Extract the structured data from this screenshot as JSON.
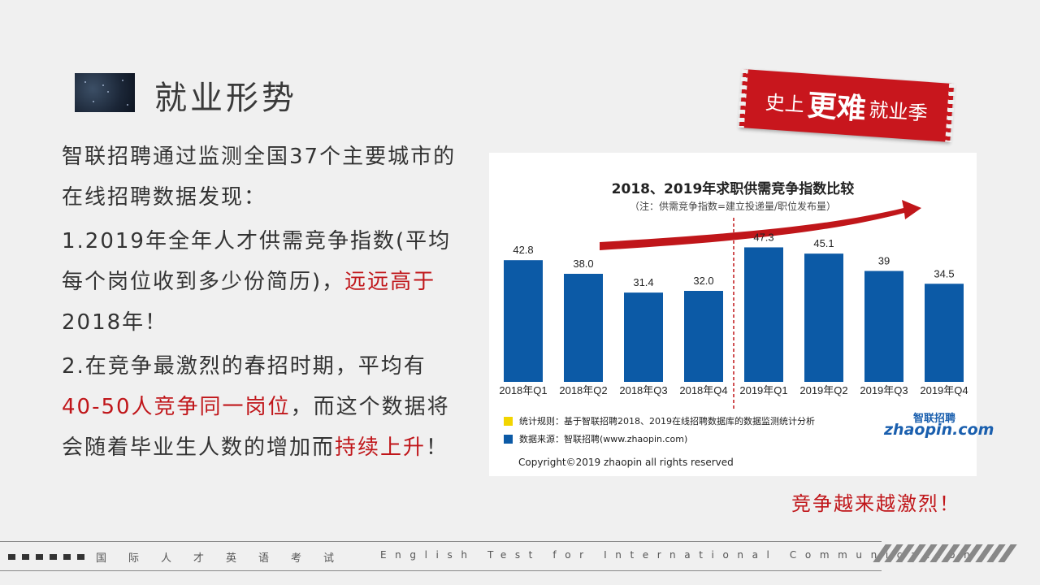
{
  "page": {
    "title": "就业形势",
    "paragraphs": [
      [
        {
          "text": "智联招聘通过监测全国37个主要城市的在线招聘数据发现：",
          "red": false
        }
      ],
      [
        {
          "text": "1.2019年全年人才供需竞争指数(平均每个岗位收到多少份简历)，",
          "red": false
        },
        {
          "text": "远远高于",
          "red": true
        },
        {
          "text": "2018年！",
          "red": false
        }
      ],
      [
        {
          "text": "2.在竞争最激烈的春招时期，平均有",
          "red": false
        },
        {
          "text": "40-50人竞争同一岗位",
          "red": true
        },
        {
          "text": "，而这个数据将会随着毕业生人数的增加而",
          "red": false
        },
        {
          "text": "持续上升",
          "red": true
        },
        {
          "text": "！",
          "red": false
        }
      ]
    ],
    "stamp": {
      "part1": "史上",
      "part2": "更难",
      "part3": "就业季"
    },
    "bottom_note": "竞争越来越激烈！"
  },
  "chart_legend": {
    "rule_label": "统计规则：基于智联招聘2018、2019在线招聘数据库的数据监测统计分析",
    "rule_color": "#f2d500",
    "source_label": "数据来源：智联招聘(www.zhaopin.com)",
    "source_color": "#0c5aa6",
    "copyright": "Copyright©2019 zhaopin all rights reserved",
    "logo_cn": "智联招聘",
    "logo_en": "zhaopin.com"
  },
  "chart_data": {
    "type": "bar",
    "title": "2018、2019年求职供需竞争指数比较",
    "subtitle": "（注：供需竞争指数=建立投递量/职位发布量）",
    "categories": [
      "2018年Q1",
      "2018年Q2",
      "2018年Q3",
      "2018年Q4",
      "2019年Q1",
      "2019年Q2",
      "2019年Q3",
      "2019年Q4"
    ],
    "values": [
      42.8,
      38.0,
      31.4,
      32.0,
      47.3,
      45.1,
      39,
      34.5
    ],
    "value_labels": [
      "42.8",
      "38.0",
      "31.4",
      "32.0",
      "47.3",
      "45.1",
      "39",
      "34.5"
    ],
    "bar_color": "#0c5aa6",
    "divider": "between 2018年Q4 and 2019年Q1",
    "divider_color": "#c0161a",
    "trend_arrow_color": "#c0161a",
    "grid": false
  },
  "footer": {
    "cn_label": "国际人才英语考试",
    "en_label": "English Test for International Communication"
  }
}
